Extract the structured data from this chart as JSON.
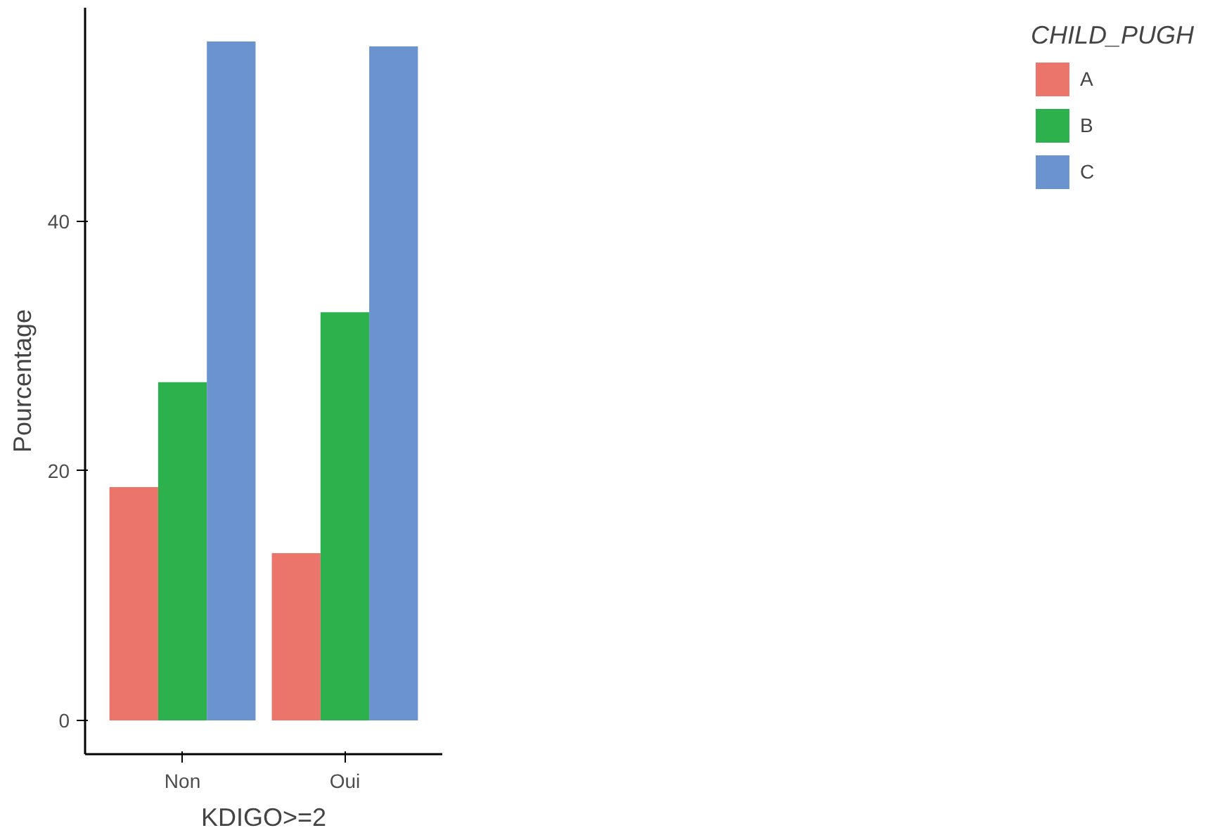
{
  "chart_data": {
    "type": "bar",
    "xlabel": "KDIGO>=2",
    "ylabel": "Pourcentage",
    "legend_title": "CHILD_PUGH",
    "categories": [
      "Non",
      "Oui"
    ],
    "series": [
      {
        "name": "A",
        "color": "#eb746b",
        "values": [
          18.7,
          13.4
        ]
      },
      {
        "name": "B",
        "color": "#2db14c",
        "values": [
          27.1,
          32.7
        ]
      },
      {
        "name": "C",
        "color": "#6a93cf",
        "values": [
          54.4,
          54.0
        ]
      }
    ],
    "ylim": [
      -2.7,
      57.1
    ],
    "yticks": [
      0,
      20,
      40
    ],
    "grid": false,
    "legend": "right"
  }
}
